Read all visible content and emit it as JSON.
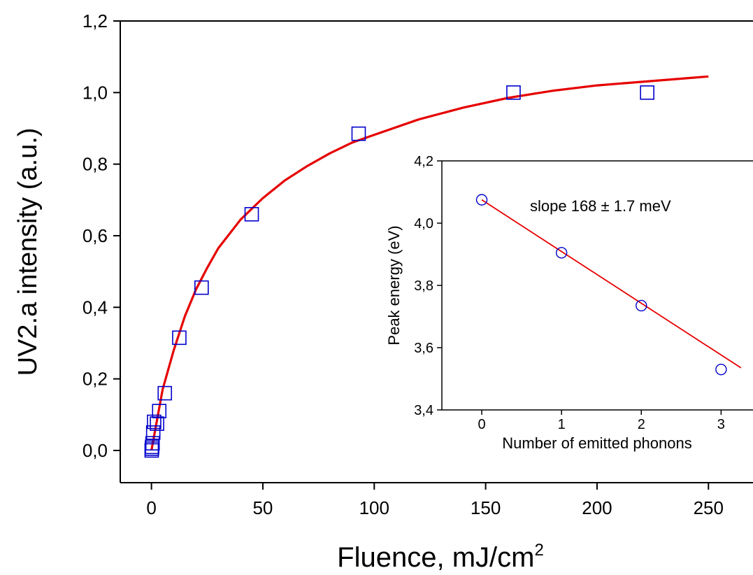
{
  "chart_data": [
    {
      "type": "scatter",
      "role": "main",
      "xlabel": "Fluence, mJ/cm",
      "xlabel_sup": "2",
      "ylabel": "UV2.a intensity (a.u.)",
      "xlim": [
        -14,
        270
      ],
      "ylim": [
        -0.09,
        1.2
      ],
      "x_ticks": [
        0,
        50,
        100,
        150,
        200,
        250
      ],
      "x_tick_labels": [
        "0",
        "50",
        "100",
        "150",
        "200",
        "250"
      ],
      "y_ticks": [
        0.0,
        0.2,
        0.4,
        0.6,
        0.8,
        1.0,
        1.2
      ],
      "y_tick_labels": [
        "0,0",
        "0,2",
        "0,4",
        "0,6",
        "0,8",
        "1,0",
        "1,2"
      ],
      "series": [
        {
          "kind": "markers",
          "marker": "open-square",
          "color": "#0000cc",
          "x": [
            0.1,
            0.2,
            0.3,
            0.5,
            0.8,
            1.2,
            2.5,
            3.5,
            6,
            12.5,
            22.5,
            45,
            93,
            162.5,
            222.5
          ],
          "y": [
            0.0,
            0.005,
            0.01,
            0.02,
            0.05,
            0.08,
            0.075,
            0.11,
            0.16,
            0.315,
            0.455,
            0.66,
            0.885,
            1.0,
            1.0
          ]
        },
        {
          "kind": "fit-line",
          "color": "#e60000",
          "x": [
            0,
            5,
            10,
            15,
            20,
            25,
            30,
            40,
            50,
            60,
            70,
            80,
            90,
            100,
            120,
            140,
            160,
            180,
            200,
            220,
            240,
            250
          ],
          "y": [
            0.0,
            0.17,
            0.28,
            0.375,
            0.45,
            0.51,
            0.565,
            0.645,
            0.705,
            0.755,
            0.795,
            0.83,
            0.86,
            0.882,
            0.925,
            0.958,
            0.985,
            1.005,
            1.02,
            1.03,
            1.04,
            1.045
          ]
        }
      ]
    },
    {
      "type": "scatter",
      "role": "inset",
      "xlabel": "Number of emitted phonons",
      "ylabel": "Peak energy (eV)",
      "annotation": "slope 168 ± 1.7 meV",
      "xlim": [
        -0.5,
        3.4
      ],
      "ylim": [
        3.4,
        4.2
      ],
      "x_ticks": [
        0,
        1,
        2,
        3
      ],
      "x_tick_labels": [
        "0",
        "1",
        "2",
        "3"
      ],
      "y_ticks": [
        3.4,
        3.6,
        3.8,
        4.0,
        4.2
      ],
      "y_tick_labels": [
        "3,4",
        "3,6",
        "3,8",
        "4,0",
        "4,2"
      ],
      "series": [
        {
          "kind": "markers",
          "marker": "open-circle",
          "color": "#0000cc",
          "x": [
            0,
            1,
            2,
            3
          ],
          "y": [
            4.075,
            3.905,
            3.735,
            3.53
          ]
        },
        {
          "kind": "fit-line",
          "color": "#e60000",
          "x": [
            0,
            3.25
          ],
          "y": [
            4.075,
            3.535
          ]
        }
      ]
    }
  ]
}
